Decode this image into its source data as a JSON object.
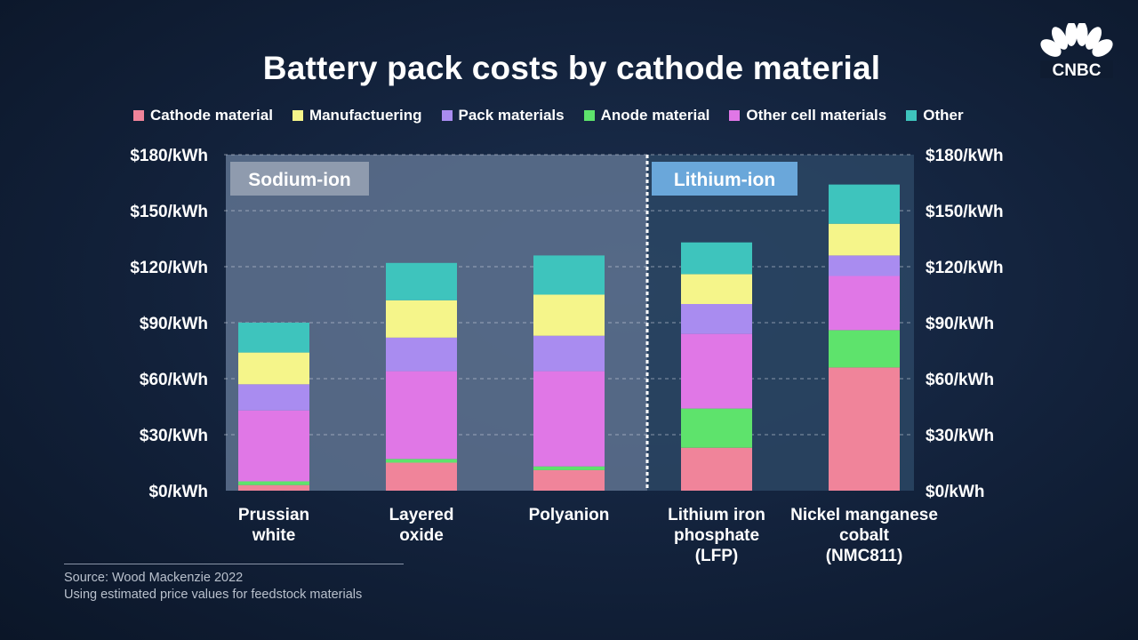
{
  "brand": {
    "logo": "CNBC"
  },
  "chart_data": {
    "type": "bar",
    "stacked": true,
    "title": "Battery pack costs by cathode material",
    "categories": [
      [
        "Prussian",
        "white"
      ],
      [
        "Layered",
        "oxide"
      ],
      [
        "Polyanion"
      ],
      [
        "Lithium iron",
        "phosphate",
        "(LFP)"
      ],
      [
        "Nickel manganese",
        "cobalt",
        "(NMC811)"
      ]
    ],
    "series": [
      {
        "name": "Cathode material",
        "color": "#f0849a",
        "values": [
          3,
          15,
          11,
          23,
          66
        ]
      },
      {
        "name": "Manufactuering",
        "color": "#f5f58a",
        "values": [
          17,
          20,
          22,
          16,
          17
        ]
      },
      {
        "name": "Pack materials",
        "color": "#a98cf0",
        "values": [
          14,
          18,
          19,
          16,
          11
        ]
      },
      {
        "name": "Anode material",
        "color": "#5ee36c",
        "values": [
          2,
          2,
          2,
          21,
          20
        ]
      },
      {
        "name": "Other cell materials",
        "color": "#e077e6",
        "values": [
          38,
          47,
          51,
          40,
          29
        ]
      },
      {
        "name": "Other",
        "color": "#3ec4bd",
        "values": [
          16,
          20,
          21,
          17,
          21
        ]
      }
    ],
    "stack_order": [
      0,
      3,
      4,
      2,
      1,
      5
    ],
    "ylim": [
      0,
      180
    ],
    "yticks": [
      0,
      30,
      60,
      90,
      120,
      150,
      180
    ],
    "ytick_format": "${v}/kWh",
    "ytick_labels": [
      "$0/kWh",
      "$30/kWh",
      "$60/kWh",
      "$90/kWh",
      "$120/kWh",
      "$150/kWh",
      "$180/kWh"
    ],
    "grid": true,
    "legend": "top",
    "regions": [
      {
        "label": "Sodium-ion",
        "categories": [
          0,
          1,
          2
        ]
      },
      {
        "label": "Lithium-ion",
        "categories": [
          3,
          4
        ]
      }
    ]
  },
  "source": {
    "line1": "Source: Wood Mackenzie 2022",
    "line2": "Using estimated price values for feedstock materials"
  }
}
